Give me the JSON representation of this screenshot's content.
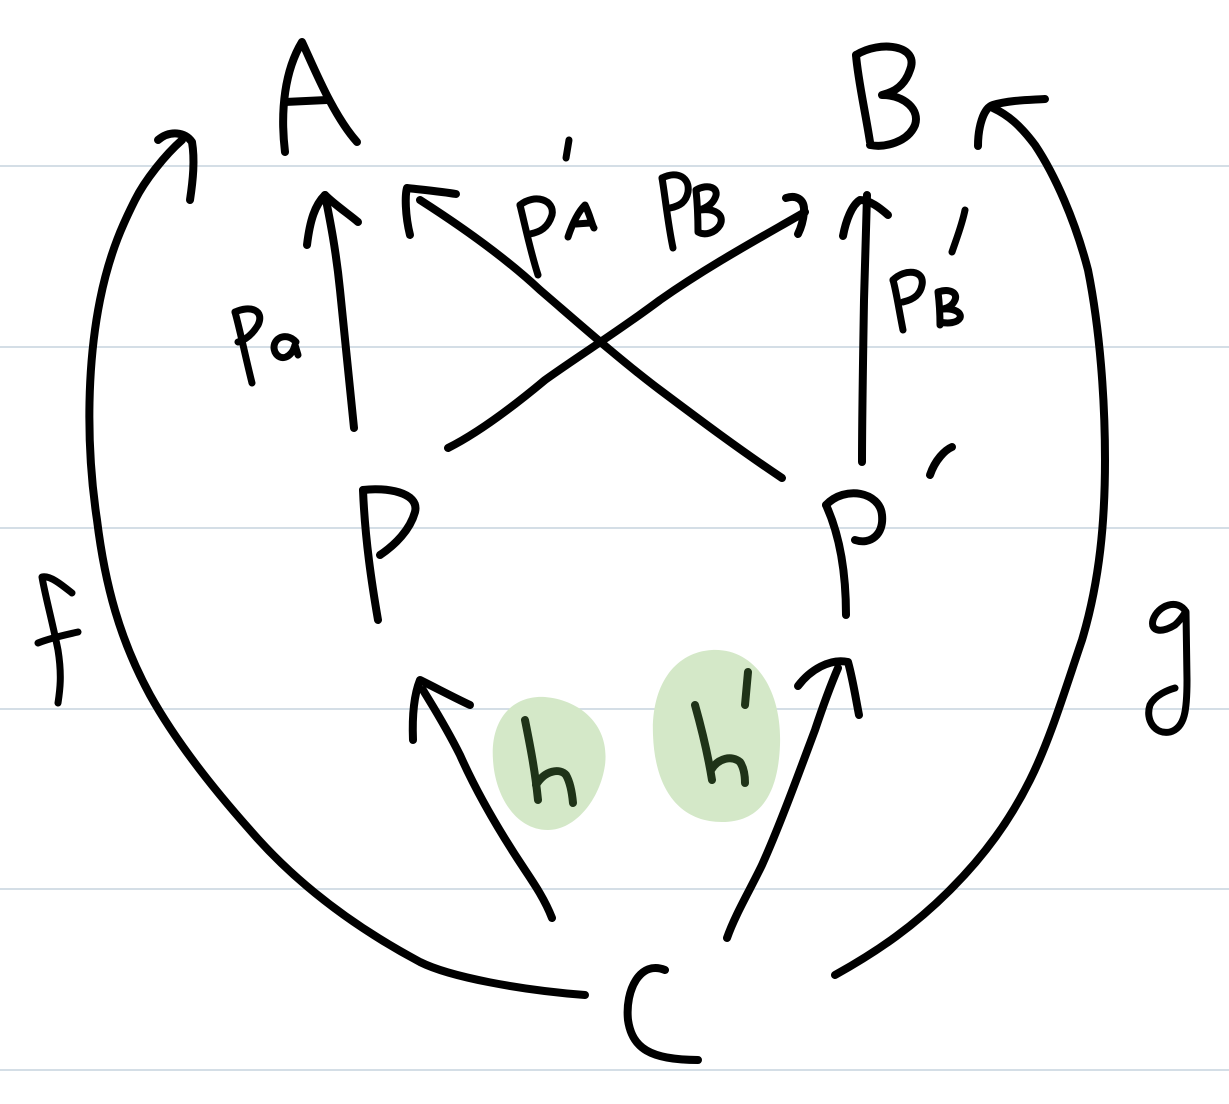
{
  "diagram": {
    "style": "handwritten commutative diagram on ruled notebook paper",
    "colors": {
      "paper": "#ffffff",
      "ruled_lines": "#c5d3de",
      "ink": "#000000",
      "highlight": "#d4e8c8",
      "highlight_ink": "#1f3318"
    },
    "nodes": {
      "A": "A",
      "B": "B",
      "P": "P",
      "P_prime": "P'",
      "C": "C"
    },
    "labels": {
      "pA": "pA",
      "pA_prime": "p'A",
      "pB": "pB",
      "pB_prime": "p'B",
      "f": "f",
      "g": "g",
      "h": "h",
      "h_prime": "h'"
    },
    "highlighted_labels": [
      "h",
      "h'"
    ],
    "arrows": [
      {
        "from": "P",
        "to": "A",
        "label": "pA"
      },
      {
        "from": "P'",
        "to": "A",
        "label": "p'A"
      },
      {
        "from": "P",
        "to": "B",
        "label": "pB"
      },
      {
        "from": "P'",
        "to": "B",
        "label": "p'B"
      },
      {
        "from": "C",
        "to": "P",
        "label": "h"
      },
      {
        "from": "C",
        "to": "P'",
        "label": "h'"
      },
      {
        "from": "C",
        "to": "A",
        "label": "f"
      },
      {
        "from": "C",
        "to": "B",
        "label": "g"
      }
    ]
  }
}
